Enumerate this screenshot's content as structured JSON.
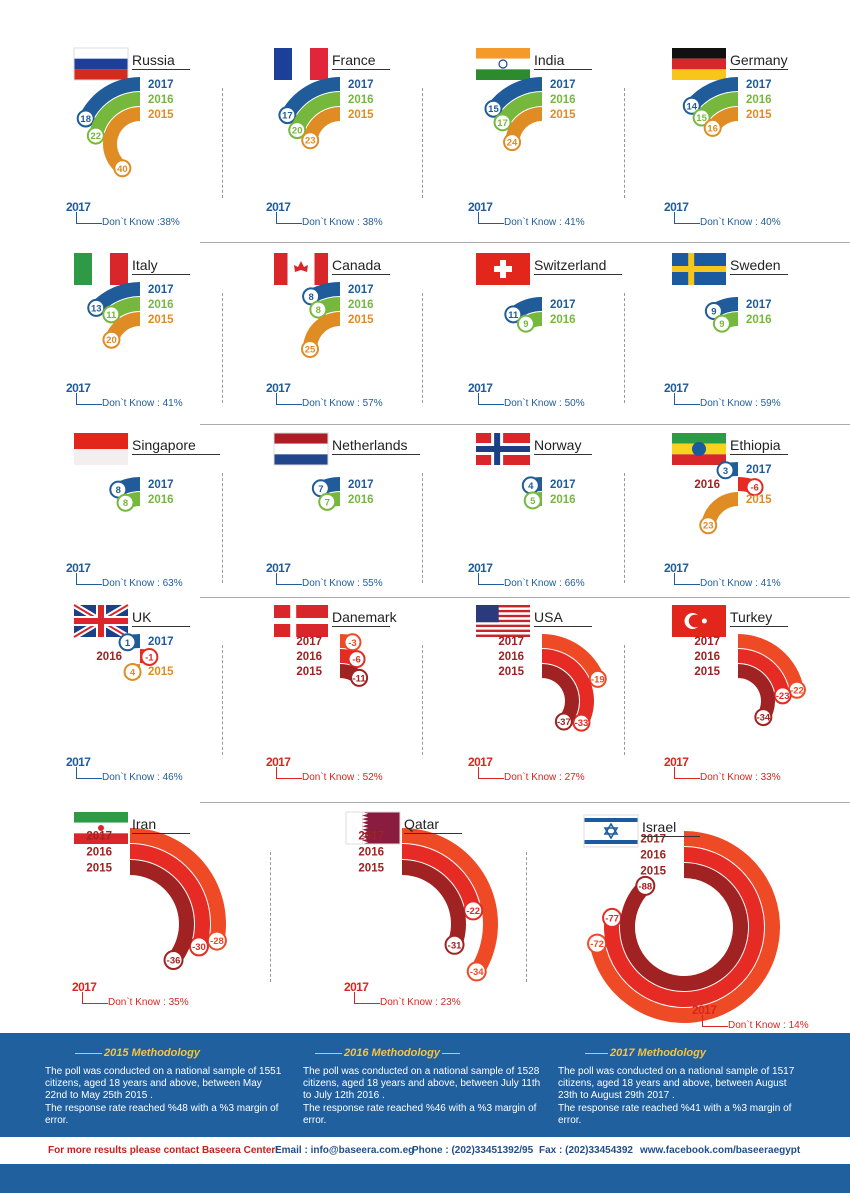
{
  "colors": {
    "blue": "#1f5c99",
    "green": "#76b83e",
    "orange": "#e08c25",
    "red_light": "#ee4a26",
    "red": "#e52b24",
    "red_dark": "#a02222",
    "label_blue": "#1f5c99",
    "label_red": "#d7261f"
  },
  "chart_data": [
    {
      "type": "radial-bar",
      "country": "Russia",
      "years": [
        "2017",
        "2016",
        "2015"
      ],
      "values": [
        18,
        22,
        40
      ],
      "dont_know_year": "2017",
      "dont_know": "Don`t Know :38%"
    },
    {
      "type": "radial-bar",
      "country": "France",
      "years": [
        "2017",
        "2016",
        "2015"
      ],
      "values": [
        17,
        20,
        23
      ],
      "dont_know_year": "2017",
      "dont_know": "Don`t Know : 38%"
    },
    {
      "type": "radial-bar",
      "country": "India",
      "years": [
        "2017",
        "2016",
        "2015"
      ],
      "values": [
        15,
        17,
        24
      ],
      "dont_know_year": "2017",
      "dont_know": "Don`t Know : 41%"
    },
    {
      "type": "radial-bar",
      "country": "Germany",
      "years": [
        "2017",
        "2016",
        "2015"
      ],
      "values": [
        14,
        15,
        16
      ],
      "dont_know_year": "2017",
      "dont_know": "Don`t Know : 40%"
    },
    {
      "type": "radial-bar",
      "country": "Italy",
      "years": [
        "2017",
        "2016",
        "2015"
      ],
      "values": [
        13,
        11,
        20
      ],
      "dont_know_year": "2017",
      "dont_know": "Don`t Know : 41%"
    },
    {
      "type": "radial-bar",
      "country": "Canada",
      "years": [
        "2017",
        "2016",
        "2015"
      ],
      "values": [
        8,
        8,
        25
      ],
      "dont_know_year": "2017",
      "dont_know": "Don`t Know : 57%"
    },
    {
      "type": "radial-bar",
      "country": "Switzerland",
      "years": [
        "2017",
        "2016"
      ],
      "values": [
        11,
        9
      ],
      "dont_know_year": "2017",
      "dont_know": "Don`t Know : 50%"
    },
    {
      "type": "radial-bar",
      "country": "Sweden",
      "years": [
        "2017",
        "2016"
      ],
      "values": [
        9,
        9
      ],
      "dont_know_year": "2017",
      "dont_know": "Don`t Know : 59%"
    },
    {
      "type": "radial-bar",
      "country": "Singapore",
      "years": [
        "2017",
        "2016"
      ],
      "values": [
        8,
        8
      ],
      "dont_know_year": "2017",
      "dont_know": "Don`t Know : 63%"
    },
    {
      "type": "radial-bar",
      "country": "Netherlands",
      "years": [
        "2017",
        "2016"
      ],
      "values": [
        7,
        7
      ],
      "dont_know_year": "2017",
      "dont_know": "Don`t Know : 55%"
    },
    {
      "type": "radial-bar",
      "country": "Norway",
      "years": [
        "2017",
        "2016"
      ],
      "values": [
        4,
        5
      ],
      "dont_know_year": "2017",
      "dont_know": "Don`t Know : 66%"
    },
    {
      "type": "radial-bar",
      "country": "Ethiopia",
      "years": [
        "2017",
        "2016",
        "2015"
      ],
      "values": [
        3,
        -6,
        23
      ],
      "dont_know_year": "2017",
      "dont_know": "Don`t Know : 41%"
    },
    {
      "type": "radial-bar",
      "country": "UK",
      "years": [
        "2017",
        "2016",
        "2015"
      ],
      "values": [
        1,
        -1,
        4
      ],
      "dont_know_year": "2017",
      "dont_know": "Don`t Know : 46%"
    },
    {
      "type": "radial-bar",
      "country": "Danemark",
      "years": [
        "2017",
        "2016",
        "2015"
      ],
      "values": [
        -3,
        -6,
        -11
      ],
      "dont_know_year": "2017",
      "dont_know": "Don`t Know : 52%"
    },
    {
      "type": "radial-bar",
      "country": "USA",
      "years": [
        "2017",
        "2016",
        "2015"
      ],
      "values": [
        -19,
        -33,
        -37
      ],
      "dont_know_year": "2017",
      "dont_know": "Don`t Know : 27%"
    },
    {
      "type": "radial-bar",
      "country": "Turkey",
      "years": [
        "2017",
        "2016",
        "2015"
      ],
      "values": [
        -22,
        -23,
        -34
      ],
      "dont_know_year": "2017",
      "dont_know": "Don`t Know : 33%"
    },
    {
      "type": "radial-bar",
      "country": "Iran",
      "years": [
        "2017",
        "2016",
        "2015"
      ],
      "values": [
        -28,
        -30,
        -36
      ],
      "dont_know_year": "2017",
      "dont_know": "Don`t Know : 35%"
    },
    {
      "type": "radial-bar",
      "country": "Qatar",
      "years": [
        "2017",
        "2016",
        "2015"
      ],
      "values": [
        -34,
        -22,
        -31
      ],
      "dont_know_year": "2017",
      "dont_know": "Don`t Know : 23%"
    },
    {
      "type": "radial-bar",
      "country": "Israel",
      "years": [
        "2017",
        "2016",
        "2015"
      ],
      "values": [
        -72,
        -77,
        -88
      ],
      "dont_know_year": "2017",
      "dont_know": "Don`t Know : 14%"
    }
  ],
  "methodology": [
    {
      "title": "2015 Methodology",
      "text": "The poll was conducted on a national sample of 1551 citizens, aged 18 years and above, between May 22nd to May 25th 2015 .",
      "text2": "The response rate reached %48 with a %3 margin of error."
    },
    {
      "title": "2016 Methodology",
      "text": "The poll was conducted on a national sample of 1528 citizens, aged 18 years and above, between July 11th to July  12th 2016 .",
      "text2": "The response rate reached %46 with a %3 margin of error."
    },
    {
      "title": "2017 Methodology",
      "text": "The poll was conducted on a national sample of 1517 citizens, aged 18 years and above, between August 23th to August  29th 2017 .",
      "text2": "The response rate reached %41 with a %3 margin of error."
    }
  ],
  "contact": {
    "lead": "For more results please contact Baseera Center:",
    "email": "Email : info@baseera.com.eg",
    "phone": "Phone : (202)33451392/95",
    "fax": "Fax : (202)33454392",
    "web": "www.facebook.com/baseeraegypt"
  }
}
